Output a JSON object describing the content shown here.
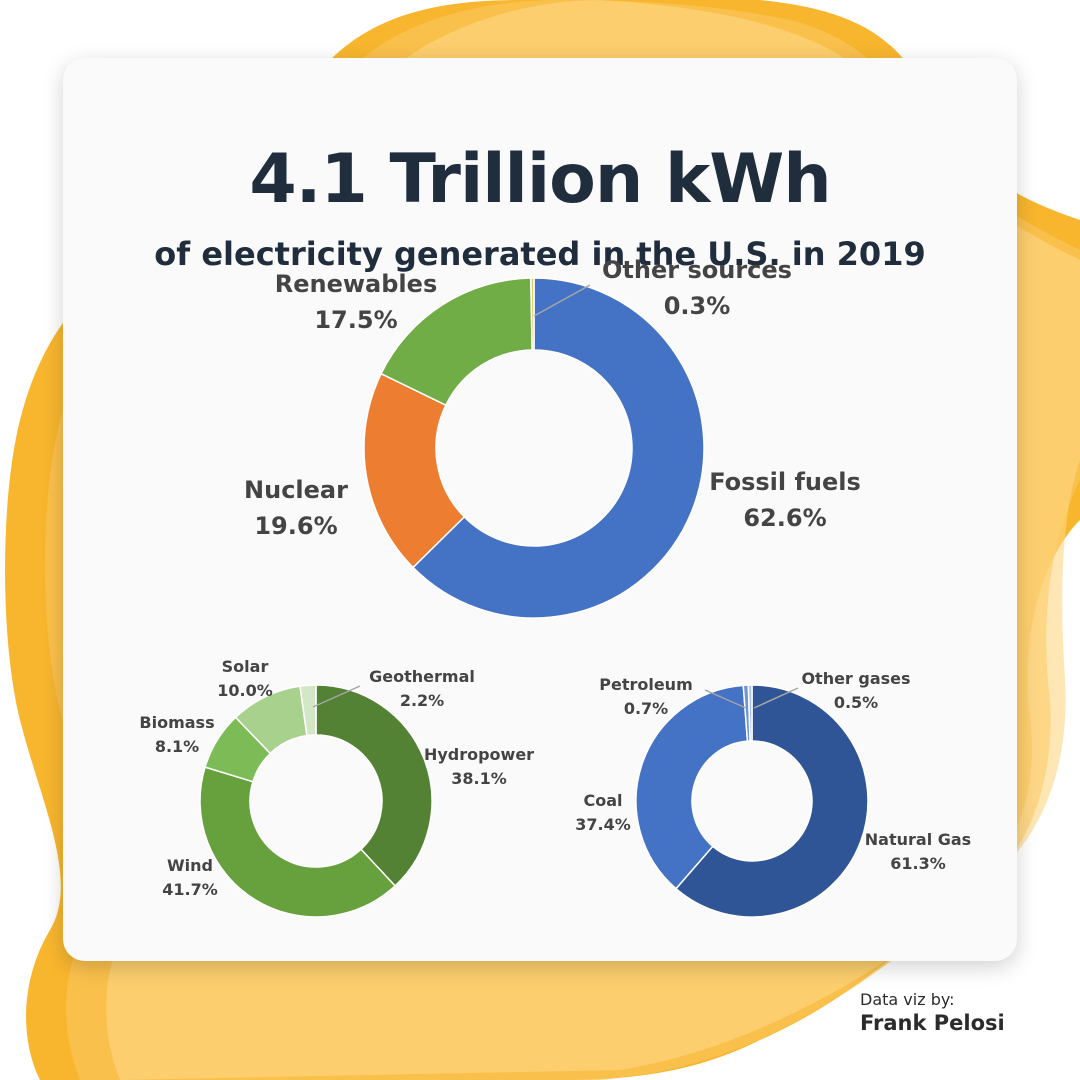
{
  "header": {
    "title": "4.1 Trillion kWh",
    "subtitle": "of electricity generated in the U.S. in 2019"
  },
  "credit": {
    "line1": "Data viz by:",
    "line2": "Frank Pelosi"
  },
  "colors": {
    "background_blob": "#f8b62f",
    "card": "#fafafa",
    "text_dark": "#1f2d3d",
    "label_text": "#444444"
  },
  "chart_data": [
    {
      "type": "pie",
      "donut": true,
      "labels": [
        "Fossil fuels",
        "Nuclear",
        "Renewables",
        "Other sources"
      ],
      "values": [
        62.6,
        19.6,
        17.5,
        0.3
      ],
      "value_labels": [
        "62.6%",
        "19.6%",
        "17.5%",
        "0.3%"
      ],
      "colors": [
        "#4472c4",
        "#ed7d31",
        "#70ad47",
        "#d9cf6a"
      ]
    },
    {
      "type": "pie",
      "donut": true,
      "labels": [
        "Hydropower",
        "Wind",
        "Biomass",
        "Solar",
        "Geothermal"
      ],
      "values": [
        38.1,
        41.7,
        8.1,
        10.0,
        2.2
      ],
      "value_labels": [
        "38.1%",
        "41.7%",
        "8.1%",
        "10.0%",
        "2.2%"
      ],
      "colors": [
        "#548235",
        "#67a13d",
        "#7cbb55",
        "#a9d18e",
        "#d3e6c6"
      ]
    },
    {
      "type": "pie",
      "donut": true,
      "labels": [
        "Natural Gas",
        "Coal",
        "Petroleum",
        "Other gases"
      ],
      "values": [
        61.3,
        37.4,
        0.7,
        0.5
      ],
      "value_labels": [
        "61.3%",
        "37.4%",
        "0.7%",
        "0.5%"
      ],
      "colors": [
        "#2f5597",
        "#4472c4",
        "#6f95d8",
        "#a9c1ea"
      ]
    }
  ]
}
